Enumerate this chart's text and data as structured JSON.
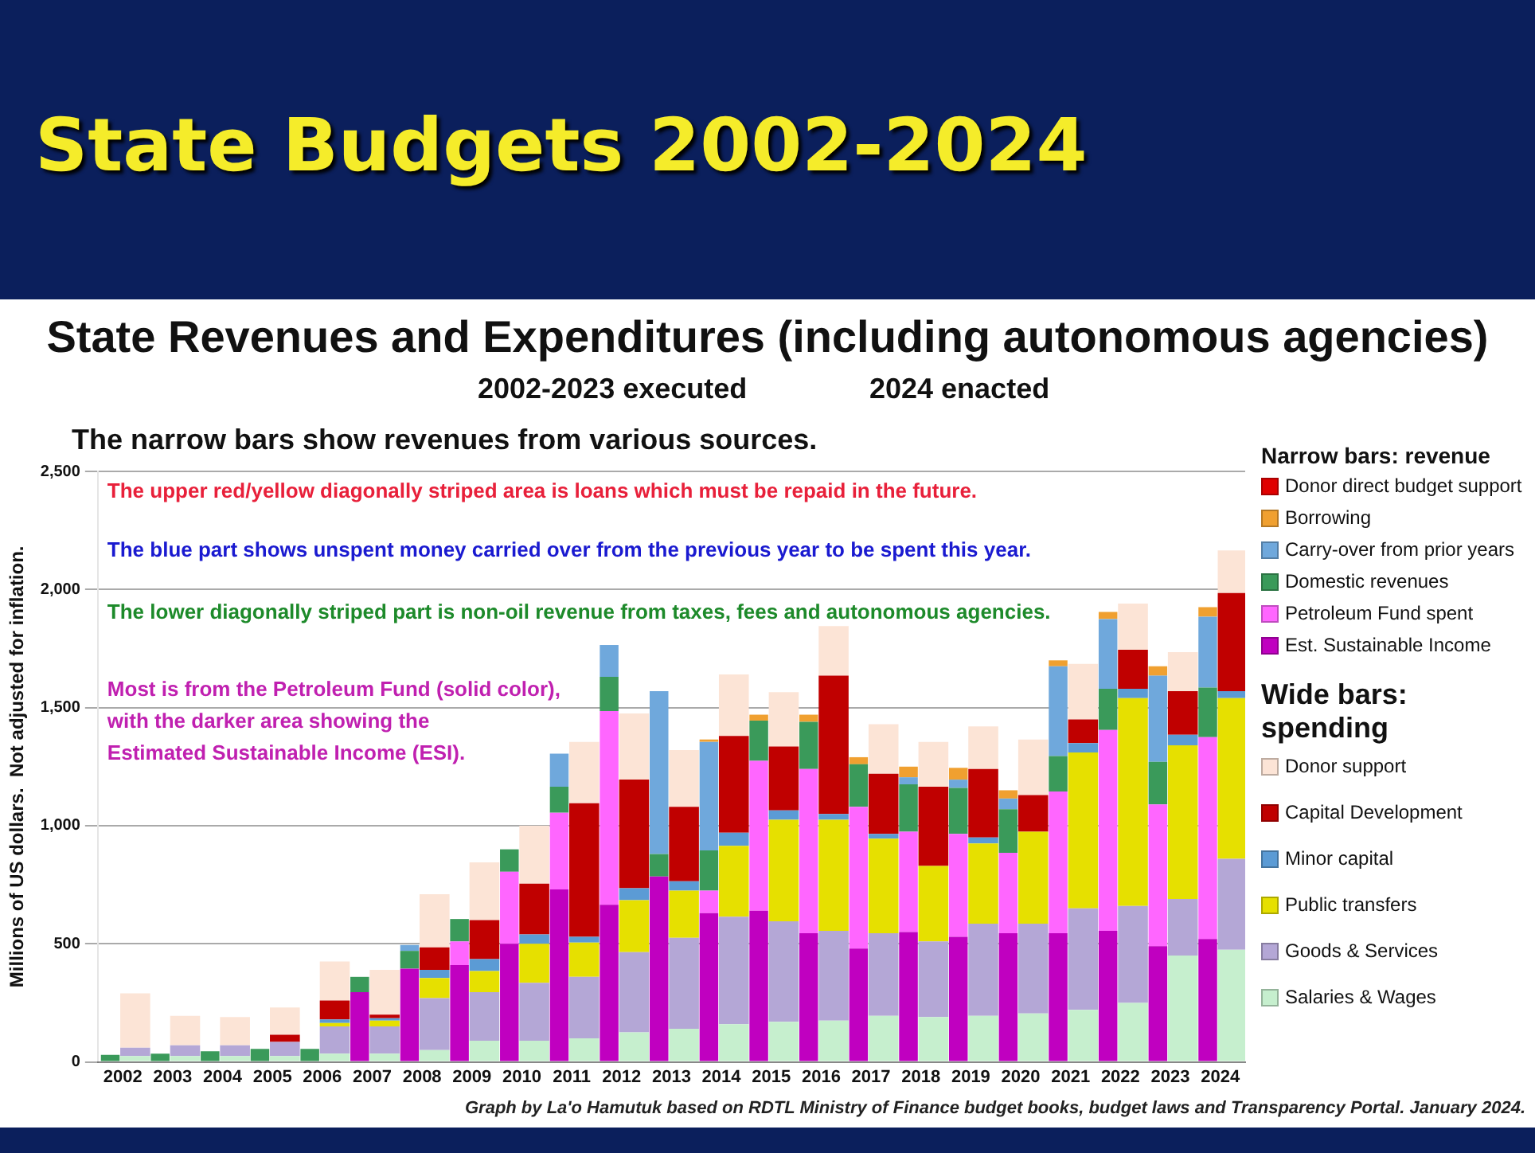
{
  "chart_data": {
    "type": "bar",
    "title": "State Budgets 2002-2024",
    "subtitle": "State Revenues and Expenditures (including autonomous agencies)",
    "ylabel": "Millions of US dollars.  Not adjusted for inflation.",
    "legend_title": [
      "Narrow bars: revenue",
      "Wide bars: spending"
    ],
    "annotations": [
      "2002-2023 executed",
      "2024 enacted",
      "The narrow bars show revenues from various sources.",
      "The upper red/yellow diagonally striped area is loans which must be repaid in the future.",
      "The blue part shows unspent money carried over from the previous year to be spent this year.",
      "The lower diagonally striped part is non-oil revenue from taxes, fees and autonomous agencies.",
      "Most is from the Petroleum Fund (solid color),\nwith the darker area showing the\nEstimated Sustainable Income (ESI).",
      "Graph by La'o Hamutuk based on RDTL Ministry of Finance budget books, budget laws and Transparency Portal.  January 2024."
    ],
    "categories": [
      "2002",
      null,
      "2003",
      null,
      "2004",
      null,
      "2005",
      null,
      "2006",
      null,
      "2007",
      null,
      "2008",
      null,
      "2009",
      null,
      "2010",
      null,
      "2011",
      null,
      "2012",
      null,
      "2013",
      null,
      "2014",
      null,
      "2015",
      null,
      "2016",
      null,
      "2017",
      null,
      "2018",
      null,
      "2019",
      null,
      "2020",
      null,
      "2021",
      null,
      "2022",
      null,
      "2023",
      null,
      "2024",
      null
    ],
    "stacked": true,
    "grid": "y",
    "legend": "right",
    "ylim": [
      0,
      2500
    ],
    "yticks": [
      0,
      500,
      {
        "value": 1000,
        "label": "1,000"
      },
      {
        "value": 1500,
        "label": "1,500"
      },
      {
        "value": 2000,
        "label": "2,000"
      },
      {
        "value": 2500,
        "label": "2,500"
      }
    ],
    "series": [
      {
        "name": "Est. Sustainable Income",
        "color": "#c000c0",
        "values": [
          null,
          null,
          null,
          null,
          null,
          null,
          null,
          null,
          null,
          null,
          295,
          null,
          395,
          null,
          410,
          null,
          500,
          null,
          730,
          null,
          665,
          null,
          785,
          null,
          630,
          null,
          640,
          null,
          545,
          null,
          480,
          null,
          550,
          null,
          530,
          null,
          545,
          null,
          545,
          null,
          555,
          null,
          490,
          null,
          520,
          null
        ]
      },
      {
        "name": "Petroleum Fund spent",
        "color": "#ff66ff",
        "values": [
          null,
          null,
          null,
          null,
          null,
          null,
          null,
          null,
          null,
          null,
          null,
          null,
          null,
          null,
          100,
          null,
          305,
          null,
          325,
          null,
          820,
          null,
          null,
          null,
          95,
          null,
          635,
          null,
          695,
          null,
          600,
          null,
          425,
          null,
          435,
          null,
          340,
          null,
          600,
          null,
          850,
          null,
          600,
          null,
          855,
          null
        ]
      },
      {
        "name": "Domestic revenues",
        "color": "#3a9a5a",
        "values": [
          30,
          null,
          35,
          null,
          45,
          null,
          55,
          null,
          55,
          null,
          65,
          null,
          75,
          null,
          95,
          null,
          95,
          null,
          110,
          null,
          145,
          null,
          95,
          null,
          170,
          null,
          170,
          null,
          200,
          null,
          180,
          null,
          200,
          null,
          195,
          null,
          185,
          null,
          150,
          null,
          175,
          null,
          180,
          null,
          210,
          null
        ]
      },
      {
        "name": "Carry-over from prior years",
        "color": "#6fa8dc",
        "values": [
          null,
          null,
          null,
          null,
          null,
          null,
          null,
          null,
          null,
          null,
          null,
          null,
          25,
          null,
          null,
          null,
          null,
          null,
          140,
          null,
          135,
          null,
          690,
          null,
          460,
          null,
          null,
          null,
          null,
          null,
          null,
          null,
          30,
          null,
          35,
          null,
          45,
          null,
          380,
          null,
          295,
          null,
          365,
          null,
          300,
          null
        ]
      },
      {
        "name": "Borrowing",
        "color": "#f0a030",
        "values": [
          null,
          null,
          null,
          null,
          null,
          null,
          null,
          null,
          null,
          null,
          null,
          null,
          null,
          null,
          null,
          null,
          null,
          null,
          null,
          null,
          null,
          null,
          null,
          null,
          10,
          null,
          25,
          null,
          30,
          null,
          30,
          null,
          45,
          null,
          50,
          null,
          35,
          null,
          25,
          null,
          30,
          null,
          40,
          null,
          40,
          null
        ]
      },
      {
        "name": "Donor direct budget support",
        "color": "#e00000",
        "values": [
          null,
          null,
          null,
          null,
          null,
          null,
          null,
          null,
          null,
          null,
          null,
          null,
          null,
          null,
          null,
          null,
          null,
          null,
          null,
          null,
          null,
          null,
          null,
          null,
          null,
          null,
          null,
          null,
          null,
          null,
          null,
          null,
          null,
          null,
          null,
          null,
          null,
          null,
          null,
          null,
          null,
          null,
          null,
          null,
          null,
          null
        ]
      },
      {
        "name": "Salaries & Wages",
        "color": "#c6efce",
        "values": [
          null,
          25,
          null,
          25,
          null,
          25,
          null,
          25,
          null,
          35,
          null,
          35,
          null,
          50,
          null,
          90,
          null,
          90,
          null,
          100,
          null,
          125,
          null,
          140,
          null,
          160,
          null,
          170,
          null,
          175,
          null,
          195,
          null,
          190,
          null,
          195,
          null,
          205,
          null,
          220,
          null,
          250,
          null,
          450,
          null,
          475
        ]
      },
      {
        "name": "Goods & Services",
        "color": "#b4a7d6",
        "values": [
          null,
          35,
          null,
          45,
          null,
          45,
          null,
          60,
          null,
          115,
          null,
          115,
          null,
          220,
          null,
          205,
          null,
          245,
          null,
          260,
          null,
          340,
          null,
          385,
          null,
          455,
          null,
          425,
          null,
          380,
          null,
          350,
          null,
          320,
          null,
          390,
          null,
          380,
          null,
          430,
          null,
          410,
          null,
          240,
          null,
          385
        ]
      },
      {
        "name": "Public transfers",
        "color": "#e6e000",
        "values": [
          null,
          null,
          null,
          null,
          null,
          null,
          null,
          null,
          null,
          15,
          null,
          25,
          null,
          85,
          null,
          90,
          null,
          165,
          null,
          145,
          null,
          220,
          null,
          200,
          null,
          300,
          null,
          430,
          null,
          470,
          null,
          400,
          null,
          320,
          null,
          340,
          null,
          390,
          null,
          660,
          null,
          880,
          null,
          650,
          null,
          680
        ]
      },
      {
        "name": "Minor capital",
        "color": "#5b9bd5",
        "values": [
          null,
          null,
          null,
          null,
          null,
          null,
          null,
          null,
          null,
          15,
          null,
          10,
          null,
          35,
          null,
          50,
          null,
          40,
          null,
          25,
          null,
          50,
          null,
          40,
          null,
          55,
          null,
          40,
          null,
          25,
          null,
          20,
          null,
          null,
          null,
          25,
          null,
          null,
          null,
          40,
          null,
          40,
          null,
          45,
          null,
          30
        ]
      },
      {
        "name": "Capital Development",
        "color": "#c00000",
        "values": [
          null,
          null,
          null,
          null,
          null,
          null,
          null,
          30,
          null,
          80,
          null,
          15,
          null,
          95,
          null,
          165,
          null,
          215,
          null,
          565,
          null,
          460,
          null,
          315,
          null,
          410,
          null,
          270,
          null,
          585,
          null,
          255,
          null,
          335,
          null,
          290,
          null,
          155,
          null,
          100,
          null,
          165,
          null,
          185,
          null,
          415
        ]
      },
      {
        "name": "Donor support",
        "color": "#fce4d6",
        "values": [
          null,
          230,
          null,
          125,
          null,
          120,
          null,
          115,
          null,
          165,
          null,
          190,
          null,
          225,
          null,
          245,
          null,
          245,
          null,
          260,
          null,
          280,
          null,
          240,
          null,
          260,
          null,
          230,
          null,
          210,
          null,
          210,
          null,
          190,
          null,
          180,
          null,
          235,
          null,
          235,
          null,
          195,
          null,
          165,
          null,
          180
        ]
      }
    ]
  }
}
